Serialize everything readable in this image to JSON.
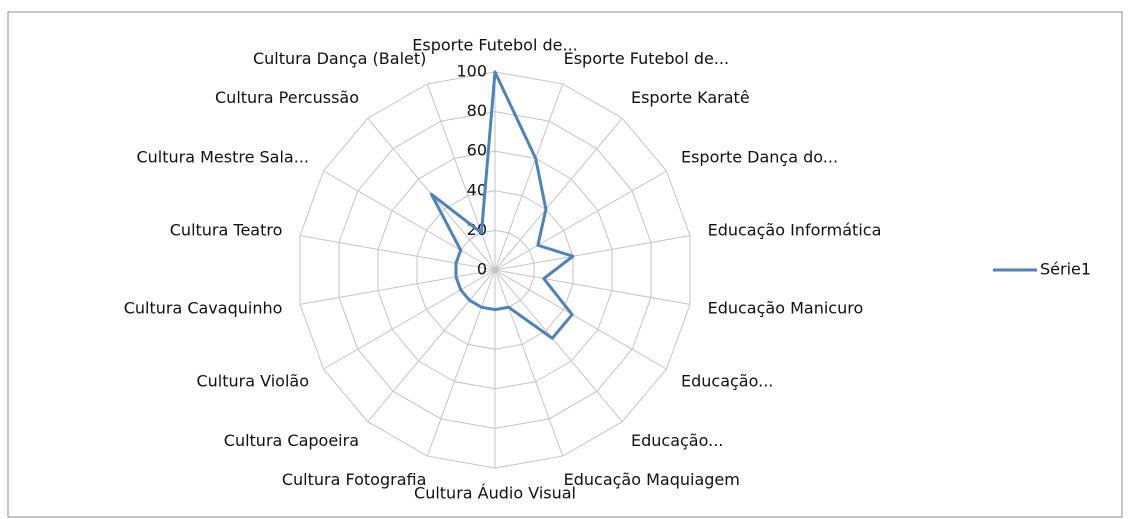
{
  "chart_data": {
    "type": "radar",
    "categories": [
      "Esporte Futebol de...",
      "Esporte Futebol de...",
      "Esporte Karatê",
      "Esporte Dança do...",
      "Educação Informática",
      "Educação Manicuro",
      "Educação...",
      "Educação...",
      "Educação Maquiagem",
      "Cultura Áudio Visual",
      "Cultura Fotografia",
      "Cultura Capoeira",
      "Cultura Violão",
      "Cultura Cavaquinho",
      "Cultura Teatro",
      "Cultura Mestre Sala...",
      "Cultura Percussão",
      "Cultura Dança (Balet)"
    ],
    "series": [
      {
        "name": "Série1",
        "color": "#4f81bd",
        "values": [
          100,
          60,
          40,
          25,
          40,
          25,
          45,
          45,
          20,
          20,
          20,
          20,
          20,
          20,
          20,
          20,
          50,
          20
        ]
      }
    ],
    "ylim": [
      0,
      100
    ],
    "yticks": [
      0,
      20,
      40,
      60,
      80,
      100
    ],
    "grid": true,
    "legend": "right"
  }
}
